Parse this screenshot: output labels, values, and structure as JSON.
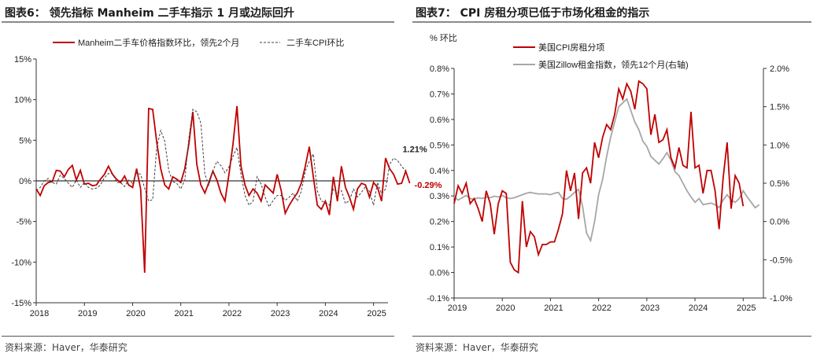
{
  "colors": {
    "red": "#c00000",
    "gray": "#a6a6a6",
    "dark": "#404040",
    "title_bg": "#ffffff"
  },
  "left": {
    "title": "图表6：  领先指标 Manheim 二手车指示 1 月或边际回升",
    "source": "资料来源：Haver，华泰研究"
  },
  "right": {
    "title": "图表7：  CPI 房租分项已低于市场化租金的指示",
    "source": "资料来源：Haver，华泰研究"
  },
  "chart_data": [
    {
      "type": "line",
      "title": "领先指标 Manheim 二手车指示 1 月或边际回升",
      "x_start": 2018.0,
      "x_step": 0.0833333,
      "xlim": [
        2018.0,
        2025.3
      ],
      "ylim": [
        -15,
        15
      ],
      "yticks": [
        15,
        10,
        5,
        0,
        -5,
        -10,
        -15
      ],
      "ytick_labels": [
        "15%",
        "10%",
        "5%",
        "0%",
        "-5%",
        "-10%",
        "-15%"
      ],
      "xticks": [
        2018,
        2019,
        2020,
        2021,
        2022,
        2023,
        2024,
        2025
      ],
      "xtick_labels": [
        "2018",
        "2019",
        "2020",
        "2021",
        "2022",
        "2023",
        "2024",
        "2025"
      ],
      "series": [
        {
          "name": "Manheim二手车价格指数环比，领先2个月",
          "style": "solid",
          "color": "red",
          "values": [
            -1.0,
            -1.8,
            -0.6,
            -0.2,
            -0.1,
            1.3,
            1.2,
            0.5,
            1.4,
            1.9,
            0.1,
            1.3,
            -0.4,
            -0.3,
            -0.6,
            -0.5,
            0.2,
            0.8,
            1.8,
            0.8,
            0.2,
            -0.2,
            0.6,
            -0.5,
            -0.8,
            1.5,
            -1.0,
            -11.3,
            8.9,
            8.8,
            4.8,
            1.5,
            -0.5,
            -1.0,
            0.5,
            0.2,
            -0.2,
            1.5,
            4.5,
            8.5,
            2.0,
            -0.5,
            -1.5,
            -0.2,
            1.2,
            0.1,
            -1.5,
            -2.5,
            0.8,
            4.5,
            9.2,
            1.8,
            -0.5,
            -1.8,
            -1.0,
            -1.5,
            -2.5,
            -0.5,
            -1.0,
            -1.5,
            0.8,
            -1.2,
            -4.0,
            -3.0,
            -2.2,
            -1.5,
            -0.3,
            1.8,
            4.2,
            0.5,
            -3.0,
            -3.5,
            -2.5,
            -4.2,
            0.5,
            -2.5,
            1.8,
            -0.8,
            -2.0,
            -3.5,
            -1.0,
            -0.3,
            -0.5,
            -2.0,
            -0.2,
            -0.8,
            -2.5,
            2.8,
            1.5,
            0.8,
            -0.4,
            -0.3,
            1.2,
            -0.29
          ],
          "end_label": "-0.29%"
        },
        {
          "name": "二手车CPI环比",
          "style": "dashed",
          "color": "dark",
          "values": [
            -1.2,
            -0.8,
            0.0,
            0.3,
            -0.2,
            -0.4,
            0.7,
            0.3,
            -0.3,
            -0.8,
            0.1,
            -0.8,
            -0.2,
            -0.8,
            -1.0,
            -0.9,
            -0.5,
            0.4,
            0.9,
            0.9,
            -0.2,
            -0.2,
            -0.7,
            0.1,
            -0.3,
            1.0,
            0.8,
            -0.9,
            -2.5,
            -2.3,
            4.1,
            6.2,
            4.9,
            1.3,
            -0.1,
            -0.3,
            -1.0,
            0.1,
            5.2,
            8.8,
            8.5,
            7.1,
            0.8,
            -0.5,
            1.2,
            2.4,
            1.9,
            1.0,
            1.7,
            3.0,
            4.1,
            0.8,
            -1.8,
            -3.0,
            -2.5,
            0.5,
            -0.4,
            -2.0,
            -3.2,
            -2.4,
            -1.8,
            -1.8,
            -2.4,
            -2.0,
            -1.5,
            -2.5,
            -1.3,
            1.2,
            2.4,
            3.3,
            -1.2,
            -2.5,
            -2.6,
            -3.0,
            -1.0,
            -1.5,
            -1.2,
            -2.8,
            -2.4,
            -1.0,
            -2.0,
            -1.4,
            -0.7,
            -1.3,
            -3.0,
            -0.2,
            -1.6,
            -1.0,
            2.0,
            2.8,
            2.5,
            1.8,
            1.21
          ],
          "end_label": "1.21%"
        }
      ]
    },
    {
      "type": "line",
      "title": "CPI 房租分项已低于市场化租金的指示",
      "ylabel": "% 环比",
      "x_start": 2019.0,
      "x_step": 0.0833333,
      "xlim": [
        2019.0,
        2025.42
      ],
      "ylim": [
        -0.1,
        0.8
      ],
      "yticks": [
        0.8,
        0.7,
        0.6,
        0.5,
        0.4,
        0.3,
        0.2,
        0.1,
        0.0,
        -0.1
      ],
      "ytick_labels": [
        "0.8%",
        "0.7%",
        "0.6%",
        "0.5%",
        "0.4%",
        "0.3%",
        "0.2%",
        "0.1%",
        "0.0%",
        "-0.1%"
      ],
      "y2lim": [
        -1.0,
        2.0
      ],
      "y2ticks": [
        2.0,
        1.5,
        1.0,
        0.5,
        0.0,
        -0.5,
        -1.0
      ],
      "y2tick_labels": [
        "2.0%",
        "1.5%",
        "1.0%",
        "0.5%",
        "0.0%",
        "-0.5%",
        "-1.0%"
      ],
      "xticks": [
        2019,
        2020,
        2021,
        2022,
        2023,
        2024,
        2025
      ],
      "xtick_labels": [
        "2019",
        "2020",
        "2021",
        "2022",
        "2023",
        "2024",
        "2025"
      ],
      "series": [
        {
          "name": "美国CPI房租分项",
          "axis": "left",
          "color": "red",
          "values": [
            0.27,
            0.34,
            0.31,
            0.35,
            0.27,
            0.29,
            0.25,
            0.2,
            0.32,
            0.27,
            0.15,
            0.27,
            0.32,
            0.31,
            0.04,
            0.01,
            0.0,
            0.28,
            0.1,
            0.16,
            0.14,
            0.07,
            0.11,
            0.11,
            0.12,
            0.12,
            0.17,
            0.23,
            0.4,
            0.32,
            0.39,
            0.21,
            0.39,
            0.41,
            0.35,
            0.51,
            0.45,
            0.53,
            0.58,
            0.56,
            0.62,
            0.72,
            0.68,
            0.74,
            0.71,
            0.64,
            0.75,
            0.74,
            0.72,
            0.54,
            0.62,
            0.51,
            0.52,
            0.56,
            0.45,
            0.41,
            0.49,
            0.42,
            0.41,
            0.63,
            0.41,
            0.42,
            0.31,
            0.4,
            0.4,
            0.32,
            0.17,
            0.37,
            0.51,
            0.25,
            0.38,
            0.35,
            0.26
          ]
        },
        {
          "name": "美国Zillow租金指数，领先12个月(右轴)",
          "axis": "right",
          "color": "gray",
          "values": [
            0.32,
            0.28,
            0.31,
            0.34,
            0.3,
            0.29,
            0.31,
            0.3,
            0.32,
            0.31,
            0.33,
            0.32,
            0.34,
            0.31,
            0.3,
            0.31,
            0.33,
            0.35,
            0.37,
            0.38,
            0.37,
            0.36,
            0.36,
            0.36,
            0.35,
            0.37,
            0.38,
            0.3,
            0.29,
            0.33,
            0.38,
            0.42,
            0.2,
            -0.15,
            -0.25,
            0.0,
            0.35,
            0.55,
            0.85,
            1.1,
            1.3,
            1.5,
            1.55,
            1.6,
            1.45,
            1.3,
            1.2,
            1.05,
            0.98,
            0.85,
            0.8,
            0.75,
            0.82,
            0.9,
            0.8,
            0.65,
            0.6,
            0.5,
            0.4,
            0.32,
            0.25,
            0.3,
            0.22,
            0.23,
            0.24,
            0.22,
            0.18,
            0.28,
            0.35,
            0.28,
            0.25,
            0.3,
            0.4,
            0.32,
            0.25,
            0.18,
            0.22
          ]
        }
      ]
    }
  ]
}
